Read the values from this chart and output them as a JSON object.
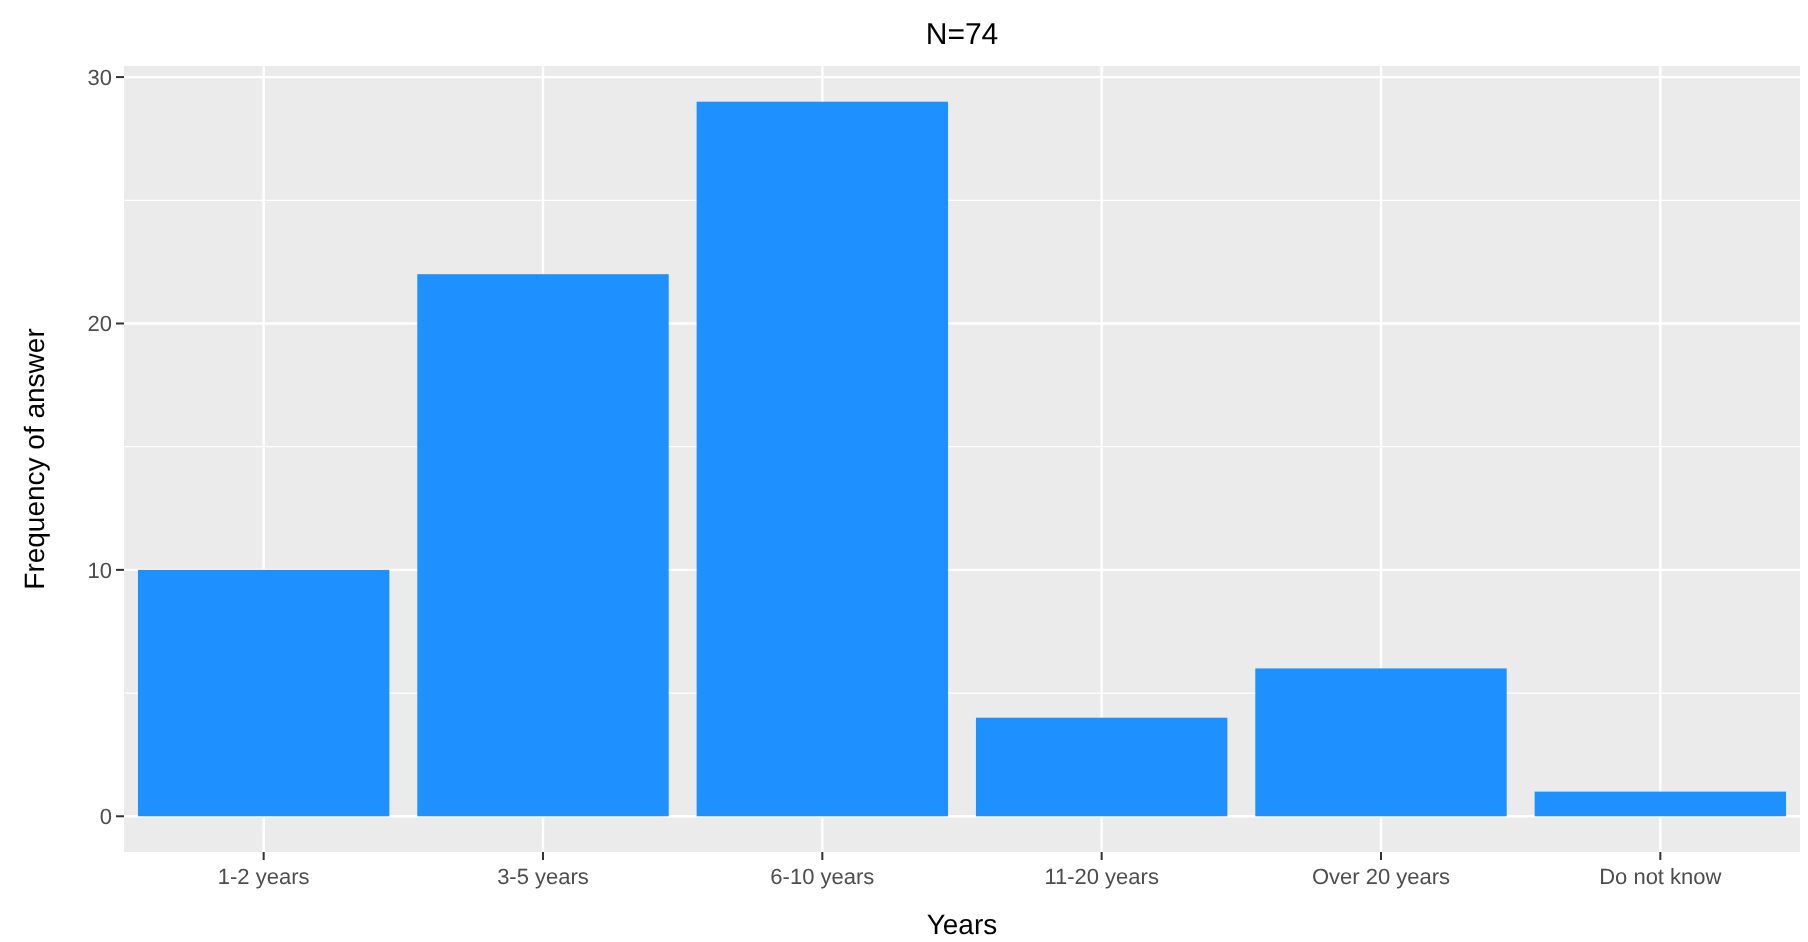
{
  "chart_data": {
    "type": "bar",
    "title": "N=74",
    "xlabel": "Years",
    "ylabel": "Frequency of answer",
    "categories": [
      "1-2 years",
      "3-5 years",
      "6-10 years",
      "11-20 years",
      "Over 20 years",
      "Do not know"
    ],
    "values": [
      10,
      22,
      29,
      4,
      6,
      1
    ],
    "color": "#1e90ff",
    "ylim": [
      -1.45,
      30.45
    ],
    "yticks": [
      0,
      10,
      20,
      30
    ],
    "grid": true
  }
}
